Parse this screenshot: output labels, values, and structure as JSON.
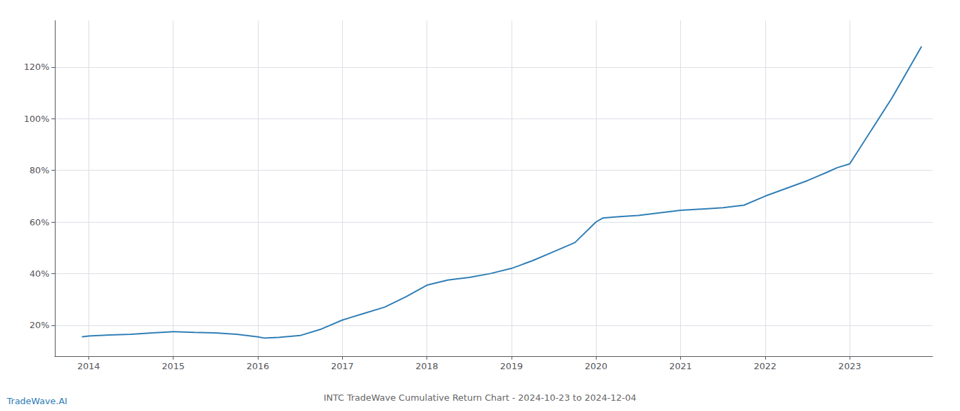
{
  "chart_data": {
    "type": "line",
    "title": "INTC TradeWave Cumulative Return Chart - 2024-10-23 to 2024-12-04",
    "annotations": [
      "TradeWave.AI"
    ],
    "color": "#2e7db5",
    "grid": true,
    "x": [
      2013.92,
      2014.0,
      2014.25,
      2014.5,
      2014.75,
      2015.0,
      2015.25,
      2015.5,
      2015.75,
      2016.0,
      2016.08,
      2016.25,
      2016.5,
      2016.75,
      2017.0,
      2017.25,
      2017.5,
      2017.75,
      2018.0,
      2018.25,
      2018.5,
      2018.75,
      2019.0,
      2019.25,
      2019.5,
      2019.75,
      2020.0,
      2020.08,
      2020.25,
      2020.5,
      2020.75,
      2021.0,
      2021.25,
      2021.5,
      2021.75,
      2022.0,
      2022.25,
      2022.5,
      2022.75,
      2022.85,
      2023.0,
      2023.5,
      2023.85
    ],
    "values": [
      15.5,
      15.8,
      16.2,
      16.5,
      17.0,
      17.5,
      17.2,
      17.0,
      16.5,
      15.5,
      15.0,
      15.3,
      16.0,
      18.5,
      22.0,
      24.5,
      27.0,
      31.0,
      35.5,
      37.5,
      38.5,
      40.0,
      42.0,
      45.0,
      48.5,
      52.0,
      60.0,
      61.5,
      62.0,
      62.5,
      63.5,
      64.5,
      65.0,
      65.5,
      66.5,
      70.0,
      73.0,
      76.0,
      79.5,
      81.0,
      82.5,
      108.0,
      128.0
    ],
    "xlim": [
      2013.6,
      2023.98
    ],
    "xticks": [
      2014,
      2015,
      2016,
      2017,
      2018,
      2019,
      2020,
      2021,
      2022,
      2023
    ],
    "ylim": [
      8,
      138
    ],
    "yticks": [
      {
        "value": 20,
        "label": "20%"
      },
      {
        "value": 40,
        "label": "40%"
      },
      {
        "value": 60,
        "label": "60%"
      },
      {
        "value": 80,
        "label": "80%"
      },
      {
        "value": 100,
        "label": "100%"
      },
      {
        "value": 120,
        "label": "120%"
      }
    ]
  }
}
